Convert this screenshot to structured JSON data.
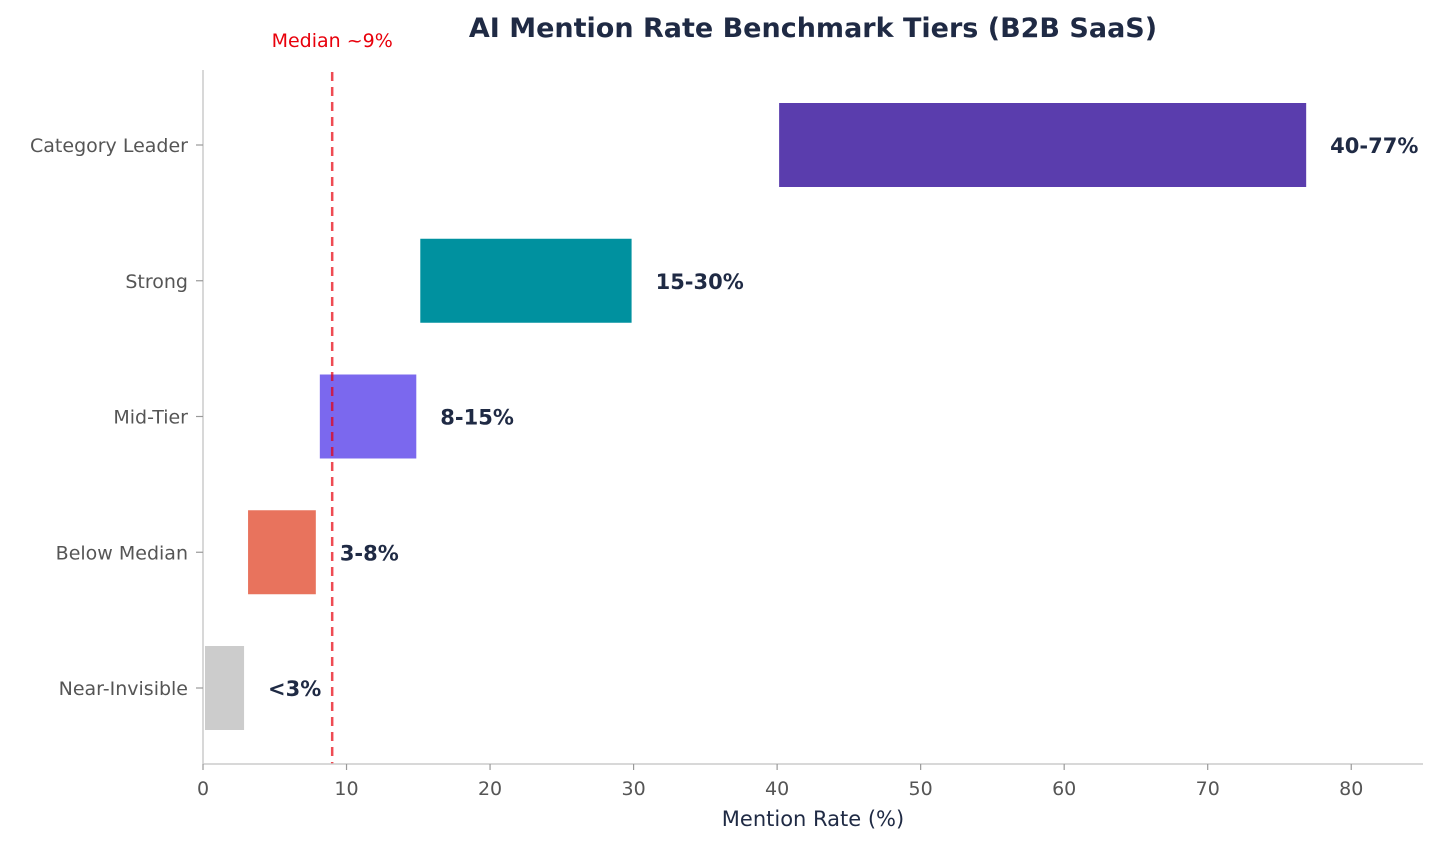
{
  "chart_data": {
    "type": "bar",
    "orientation": "horizontal",
    "title": "AI Mention Rate Benchmark Tiers (B2B SaaS)",
    "xlabel": "Mention Rate (%)",
    "ylabel": "",
    "xlim": [
      0,
      85
    ],
    "xticks": [
      0,
      10,
      20,
      30,
      40,
      50,
      60,
      70,
      80
    ],
    "grid": false,
    "categories": [
      "Category Leader",
      "Strong",
      "Mid-Tier",
      "Below Median",
      "Near-Invisible"
    ],
    "ranges": [
      {
        "start": 40,
        "end": 77,
        "label": "40-77%",
        "color": "#5a3dad"
      },
      {
        "start": 15,
        "end": 30,
        "label": "15-30%",
        "color": "#00919f"
      },
      {
        "start": 8,
        "end": 15,
        "label": "8-15%",
        "color": "#7b68ee"
      },
      {
        "start": 3,
        "end": 8,
        "label": "3-8%",
        "color": "#e8735d"
      },
      {
        "start": 0,
        "end": 3,
        "label": "<3%",
        "color": "#cccccc"
      }
    ],
    "reference_line": {
      "value": 9,
      "label": "Median ~9%",
      "color": "#e8000b",
      "style": "dashed"
    }
  }
}
